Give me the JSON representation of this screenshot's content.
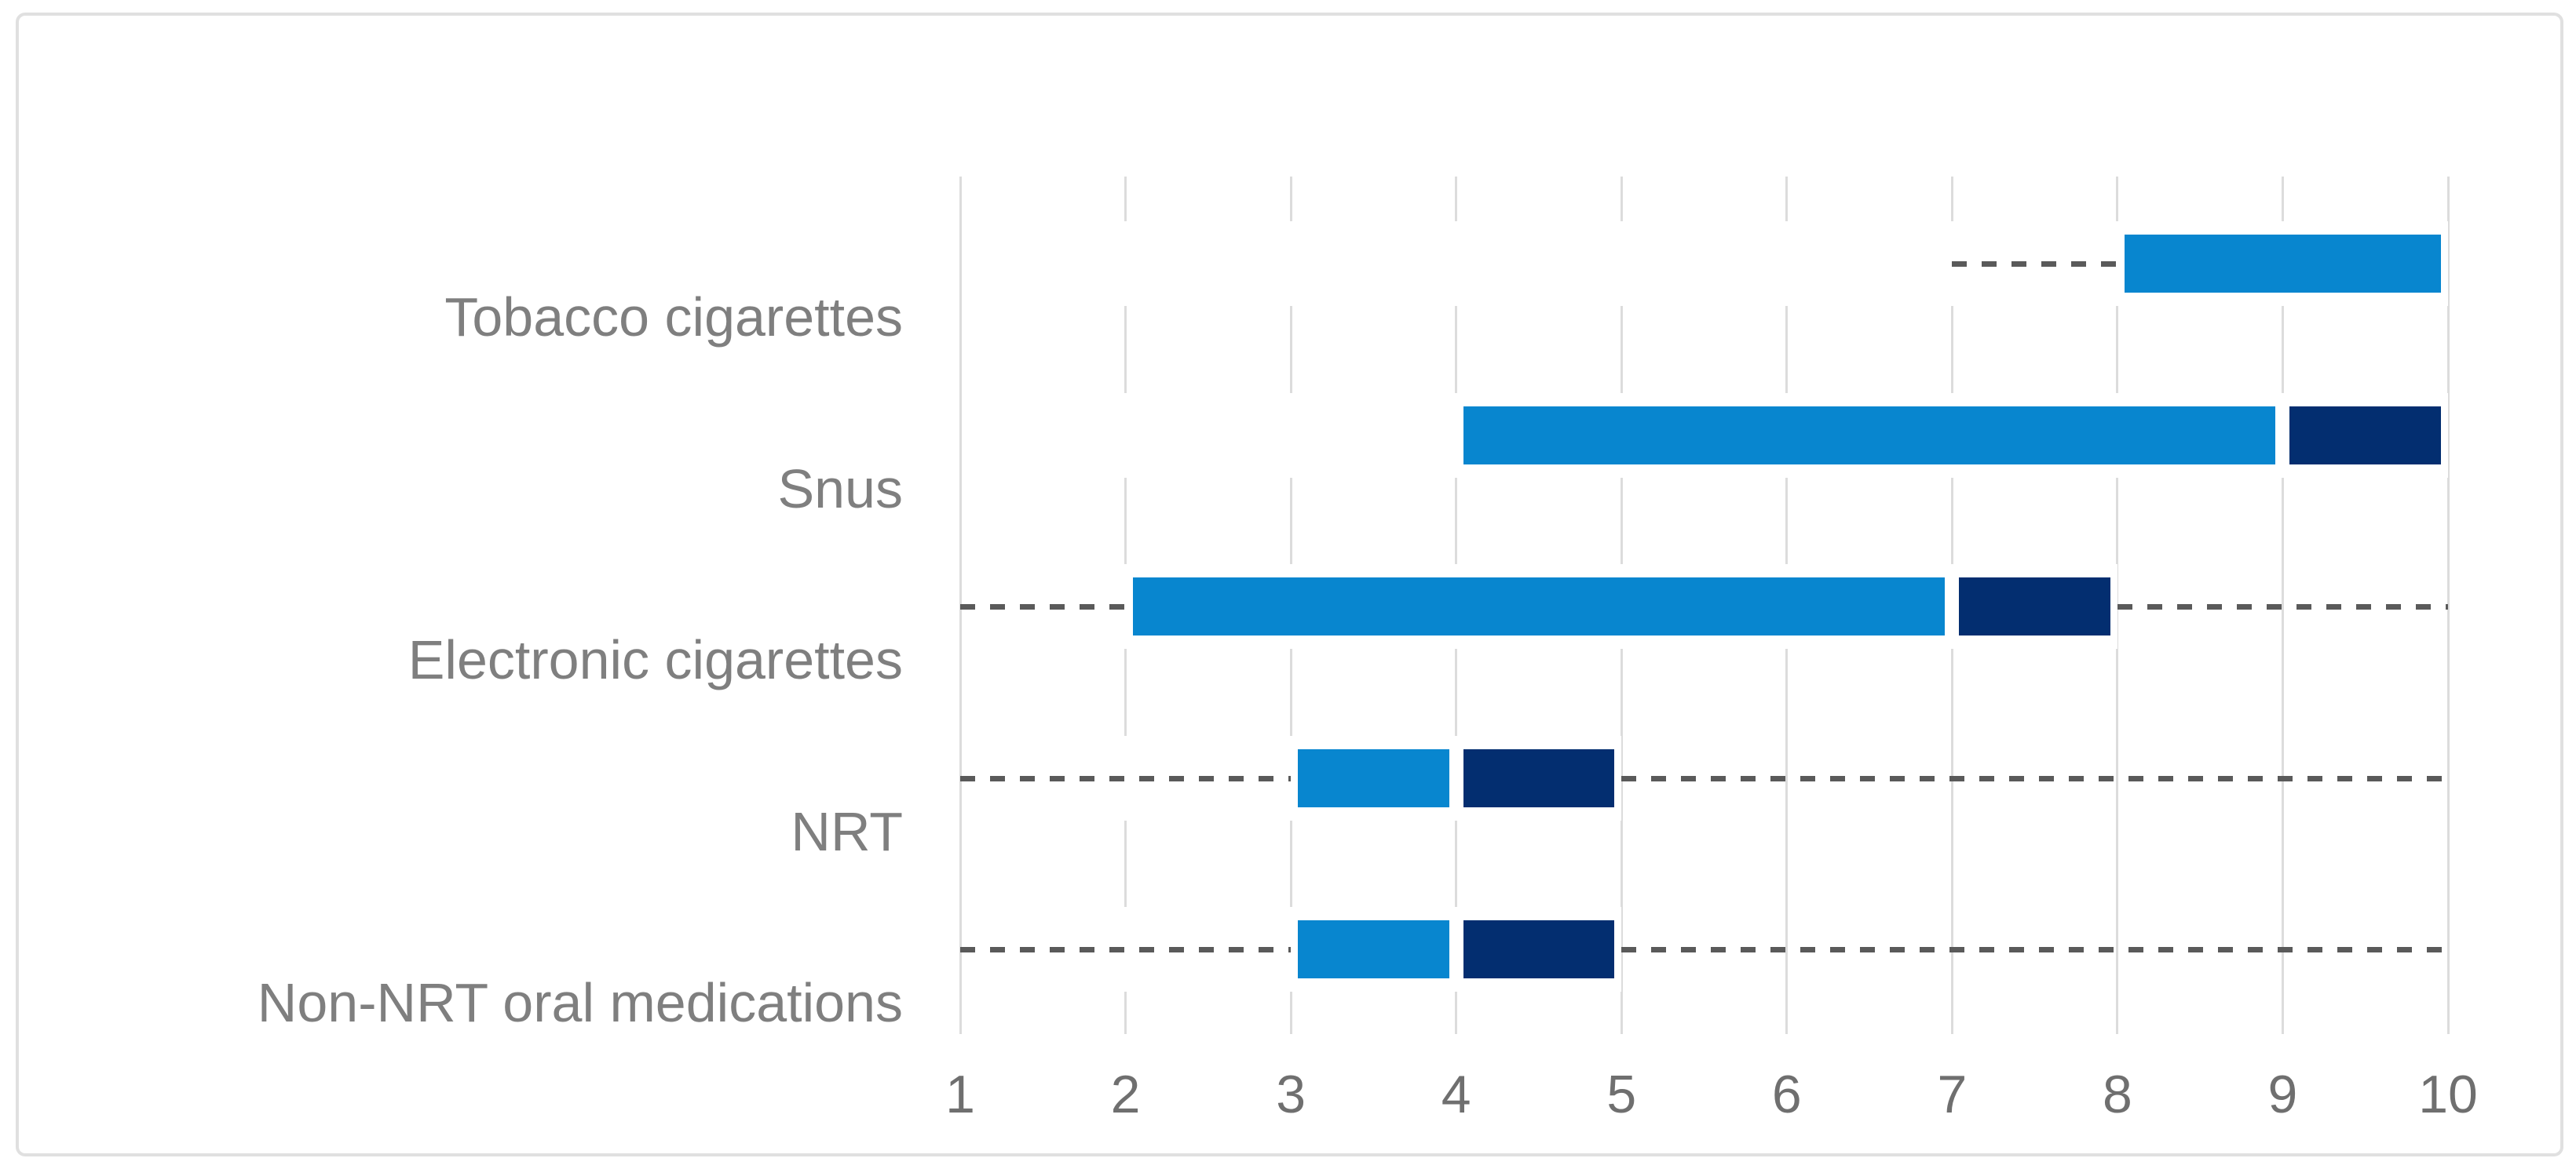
{
  "chart_data": {
    "type": "bar",
    "subtype": "horizontal-range-bars-with-dashed-whiskers",
    "title": "",
    "xlabel": "",
    "ylabel": "",
    "xlim": [
      1,
      10
    ],
    "x_ticks": [
      "1",
      "2",
      "3",
      "4",
      "5",
      "6",
      "7",
      "8",
      "9",
      "10"
    ],
    "grid": true,
    "legend": false,
    "categories": [
      "Tobacco cigarettes",
      "Snus",
      "Electronic cigarettes",
      "NRT",
      "Non-NRT oral medications"
    ],
    "rows": [
      {
        "category": "Tobacco cigarettes",
        "whiskers": [
          [
            7,
            8
          ]
        ],
        "segments": [
          {
            "color": "light_blue",
            "from": 8,
            "to": 10
          }
        ]
      },
      {
        "category": "Snus",
        "whiskers": [],
        "segments": [
          {
            "color": "light_blue",
            "from": 4,
            "to": 9
          },
          {
            "color": "dark_blue",
            "from": 9,
            "to": 10
          }
        ]
      },
      {
        "category": "Electronic cigarettes",
        "whiskers": [
          [
            1,
            2
          ],
          [
            8,
            10
          ]
        ],
        "segments": [
          {
            "color": "light_blue",
            "from": 2,
            "to": 7
          },
          {
            "color": "dark_blue",
            "from": 7,
            "to": 8
          }
        ]
      },
      {
        "category": "NRT",
        "whiskers": [
          [
            1,
            3
          ],
          [
            5,
            10
          ]
        ],
        "segments": [
          {
            "color": "light_blue",
            "from": 3,
            "to": 4
          },
          {
            "color": "dark_blue",
            "from": 4,
            "to": 5
          }
        ]
      },
      {
        "category": "Non-NRT oral medications",
        "whiskers": [
          [
            1,
            3
          ],
          [
            5,
            10
          ]
        ],
        "segments": [
          {
            "color": "light_blue",
            "from": 3,
            "to": 4
          },
          {
            "color": "dark_blue",
            "from": 4,
            "to": 5
          }
        ]
      }
    ],
    "colors": {
      "light_blue": "#0886cf",
      "dark_blue": "#032e70",
      "gridline": "#dcdcdc",
      "whisker": "#5a5a5a",
      "category_label": "#7f7f7f",
      "tick_label": "#6f6f6f",
      "frame_border": "#e0e0e0",
      "background": "#ffffff"
    }
  }
}
